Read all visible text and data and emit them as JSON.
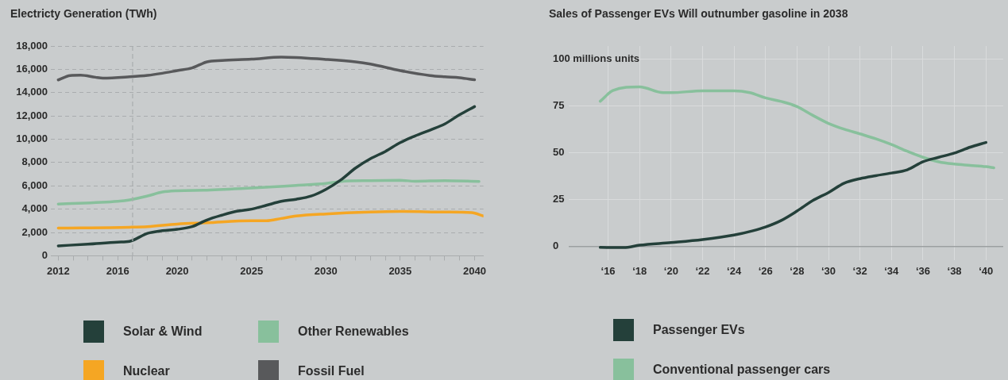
{
  "chart_data": [
    {
      "type": "line",
      "title": "Electricty Generation (TWh)",
      "legend": "bottom",
      "grid": "y",
      "marker": "none",
      "line_style": "solid",
      "xlim": [
        2011.5,
        2040.6
      ],
      "ylim": [
        0,
        18000
      ],
      "xticks": [
        2012,
        {
          "value": 2013,
          "label": null
        },
        {
          "value": 2014,
          "label": null
        },
        {
          "value": 2015,
          "label": null
        },
        2016,
        {
          "value": 2017,
          "label": null
        },
        {
          "value": 2018,
          "label": null
        },
        {
          "value": 2019,
          "label": null
        },
        2020,
        {
          "value": 2021,
          "label": null
        },
        {
          "value": 2022,
          "label": null
        },
        {
          "value": 2023,
          "label": null
        },
        {
          "value": 2024,
          "label": null
        },
        2025,
        {
          "value": 2026,
          "label": null
        },
        {
          "value": 2027,
          "label": null
        },
        {
          "value": 2028,
          "label": null
        },
        {
          "value": 2029,
          "label": null
        },
        2030,
        {
          "value": 2031,
          "label": null
        },
        {
          "value": 2032,
          "label": null
        },
        {
          "value": 2033,
          "label": null
        },
        {
          "value": 2034,
          "label": null
        },
        2035,
        {
          "value": 2036,
          "label": null
        },
        {
          "value": 2037,
          "label": null
        },
        {
          "value": 2038,
          "label": null
        },
        {
          "value": 2039,
          "label": null
        },
        2040
      ],
      "yticks": [
        0,
        {
          "value": 2000,
          "label": "2,000"
        },
        {
          "value": 4000,
          "label": "4,000"
        },
        {
          "value": 6000,
          "label": "6,000"
        },
        {
          "value": 8000,
          "label": "8,000"
        },
        {
          "value": 10000,
          "label": "10,000"
        },
        {
          "value": 12000,
          "label": "12,000"
        },
        {
          "value": 14000,
          "label": "14,000"
        },
        {
          "value": 16000,
          "label": "16,000"
        },
        {
          "value": 18000,
          "label": "18,000"
        }
      ],
      "ref_lines": [
        {
          "axis": "x",
          "value": 2017,
          "line_style": "dashed",
          "color": "#a9acae"
        }
      ],
      "series": [
        {
          "name": "Solar & Wind",
          "color": "#24403a",
          "x": [
            2012,
            2014,
            2016,
            2016.8,
            2018,
            2019,
            2020,
            2021,
            2022,
            2023,
            2024,
            2025,
            2026,
            2027,
            2028,
            2029,
            2030,
            2031,
            2032,
            2033,
            2034,
            2035,
            2036,
            2037,
            2038,
            2039,
            2040
          ],
          "values": [
            850,
            1000,
            1170,
            1240,
            1920,
            2150,
            2270,
            2500,
            3070,
            3480,
            3820,
            4000,
            4330,
            4670,
            4850,
            5120,
            5700,
            6500,
            7530,
            8330,
            8950,
            9710,
            10280,
            10780,
            11310,
            12110,
            12800
          ]
        },
        {
          "name": "Other Renewables",
          "color": "#88c09c",
          "x": [
            2012,
            2016,
            2016.8,
            2018,
            2019,
            2020,
            2022,
            2025,
            2028,
            2030,
            2031,
            2033,
            2035,
            2036,
            2038,
            2040.3
          ],
          "values": [
            4440,
            4670,
            4790,
            5130,
            5470,
            5580,
            5630,
            5810,
            6040,
            6200,
            6380,
            6450,
            6470,
            6400,
            6450,
            6380
          ]
        },
        {
          "name": "Nuclear",
          "color": "#f5a623",
          "x": [
            2012,
            2016.8,
            2018,
            2020,
            2022,
            2025,
            2026,
            2027,
            2028,
            2030,
            2033,
            2035,
            2038,
            2039.8,
            2040.6
          ],
          "values": [
            2380,
            2450,
            2500,
            2720,
            2830,
            3000,
            3000,
            3200,
            3410,
            3590,
            3750,
            3800,
            3750,
            3700,
            3410
          ]
        },
        {
          "name": "Fossil Fuel",
          "color": "#58595b",
          "x": [
            2012,
            2012.8,
            2013.5,
            2014.5,
            2015,
            2016.8,
            2018,
            2019,
            2020,
            2021,
            2022,
            2023,
            2025,
            2027,
            2030,
            2032,
            2033,
            2035,
            2037,
            2038,
            2039,
            2040
          ],
          "values": [
            15090,
            15470,
            15500,
            15320,
            15250,
            15360,
            15480,
            15660,
            15890,
            16120,
            16640,
            16760,
            16870,
            17050,
            16850,
            16640,
            16450,
            15890,
            15470,
            15360,
            15280,
            15100
          ]
        }
      ]
    },
    {
      "type": "line",
      "title": "Sales of Passenger EVs Will outnumber gasoline in 2038",
      "legend": "bottom",
      "grid": true,
      "marker": "none",
      "line_style": "solid",
      "xlim": [
        13.5,
        41.1
      ],
      "ylim": [
        -7.5,
        107
      ],
      "xticks": [
        {
          "value": 16,
          "label": "‘16"
        },
        {
          "value": 18,
          "label": "‘18"
        },
        {
          "value": 20,
          "label": "‘20"
        },
        {
          "value": 22,
          "label": "‘22"
        },
        {
          "value": 24,
          "label": "‘24"
        },
        {
          "value": 26,
          "label": "‘26"
        },
        {
          "value": 28,
          "label": "‘28"
        },
        {
          "value": 30,
          "label": "‘30"
        },
        {
          "value": 32,
          "label": "‘32"
        },
        {
          "value": 34,
          "label": "‘34"
        },
        {
          "value": 36,
          "label": "‘36"
        },
        {
          "value": 38,
          "label": "‘38"
        },
        {
          "value": 40,
          "label": "‘40"
        }
      ],
      "yticks": [
        0,
        25,
        50,
        75,
        {
          "value": 100,
          "label": "100 millions units"
        }
      ],
      "series": [
        {
          "name": "Passenger EVs",
          "color": "#24403a",
          "x": [
            15.5,
            17,
            18,
            20,
            22,
            24,
            25.2,
            26,
            27,
            28,
            29,
            30,
            31,
            32,
            33,
            34,
            35,
            36,
            37,
            38,
            39,
            40
          ],
          "values": [
            -0.5,
            -0.6,
            0.7,
            2.1,
            3.7,
            6.1,
            8.4,
            10.4,
            13.9,
            18.9,
            24.5,
            28.8,
            33.8,
            36.2,
            37.8,
            39.2,
            40.9,
            45.2,
            47.6,
            49.9,
            53.0,
            55.5
          ]
        },
        {
          "name": "Conventional passenger cars",
          "color": "#88c09c",
          "x": [
            15.5,
            16.3,
            18,
            19.5,
            20,
            22,
            24,
            25,
            26,
            27,
            28,
            29,
            30,
            31,
            32,
            33,
            34,
            35,
            36,
            37,
            38,
            39,
            40,
            40.5
          ],
          "values": [
            77.5,
            83.2,
            85.2,
            82.1,
            82.1,
            83.1,
            83.1,
            82.1,
            79.3,
            77.4,
            74.7,
            70.0,
            65.7,
            62.6,
            60.1,
            57.5,
            54.4,
            50.8,
            47.6,
            45.2,
            44.0,
            43.3,
            42.6,
            42.0
          ]
        }
      ]
    }
  ]
}
